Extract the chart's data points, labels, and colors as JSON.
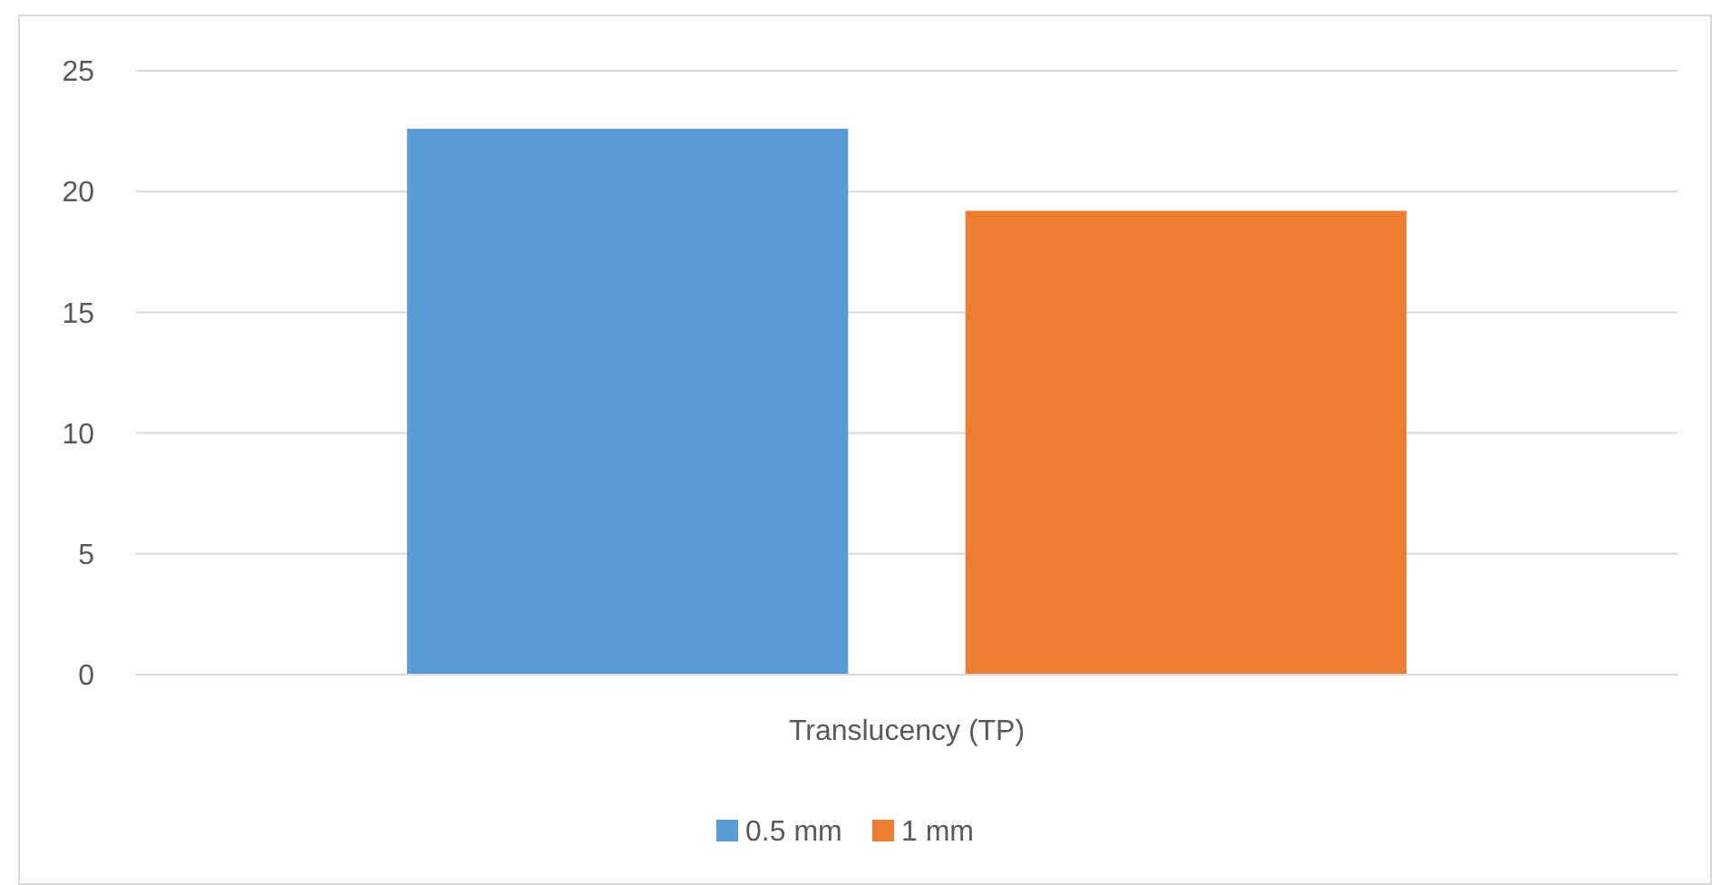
{
  "chart_data": {
    "type": "bar",
    "categories": [
      "Translucency (TP)"
    ],
    "series": [
      {
        "name": "0.5 mm",
        "color": "#5b9bd5",
        "values": [
          22.6
        ]
      },
      {
        "name": "1 mm",
        "color": "#ed7d31",
        "values": [
          19.2
        ]
      }
    ],
    "ylim": [
      0,
      25
    ],
    "yticks": [
      0,
      5,
      10,
      15,
      20,
      25
    ],
    "grid": "y",
    "legend": "bottom"
  }
}
